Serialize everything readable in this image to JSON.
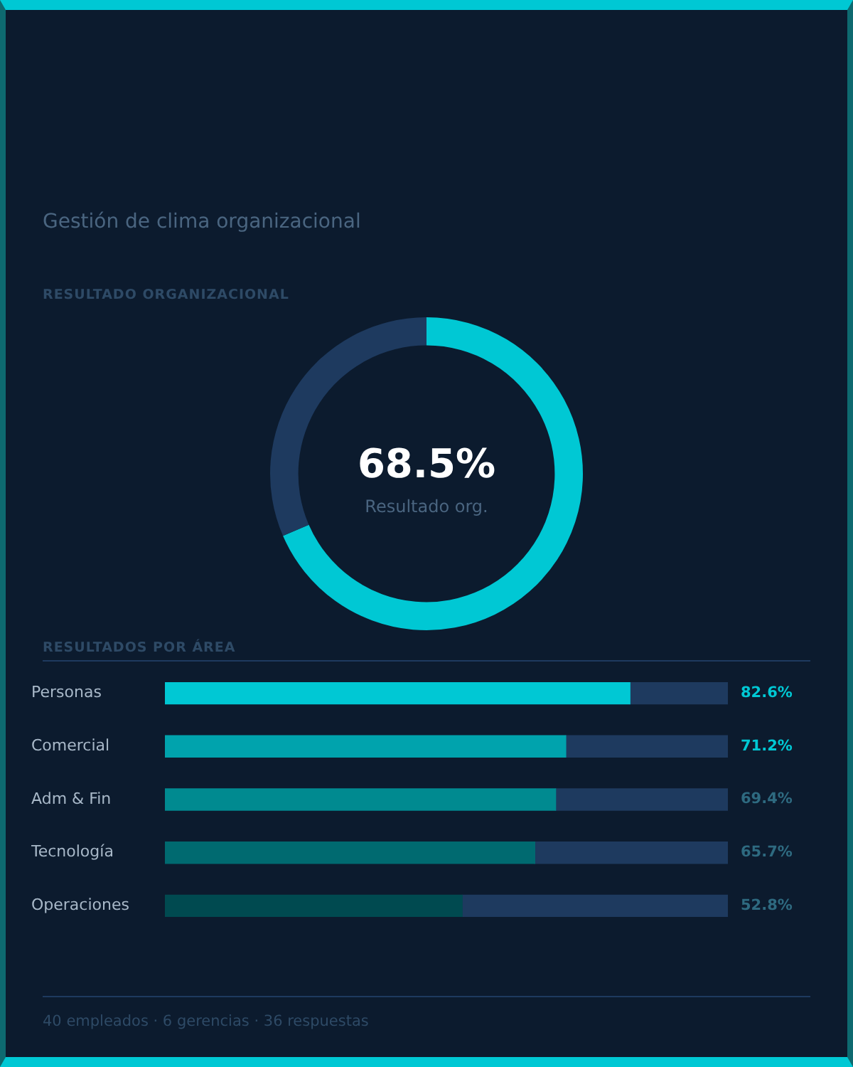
{
  "chart_data": [
    {
      "type": "donut",
      "title": "RESULTADO ORGANIZACIONAL",
      "subtitle": "Gestión de clima organizacional",
      "categories": [
        null,
        null
      ],
      "values": [
        68.5,
        31.5
      ],
      "colors": [
        "#00c8d4",
        "#1e3a5f"
      ],
      "value_labels": [
        "68.5%",
        null
      ],
      "annotations": [
        "Resultado org."
      ],
      "legend": false
    },
    {
      "type": "bar",
      "orientation": "horizontal",
      "stacked": true,
      "title": "RESULTADOS POR ÁREA",
      "categories": [
        "Personas",
        "Comercial",
        "Adm & Fin",
        "Tecnología",
        "Operaciones"
      ],
      "series": [
        {
          "colors": [
            "#00c8d4",
            "#00a3ad",
            "#008a90",
            "#006a70",
            "#004a50"
          ],
          "values": [
            82.6,
            71.2,
            69.4,
            65.7,
            52.8
          ],
          "value_labels": [
            "82.6%",
            "71.2%",
            "69.4%",
            "65.7%",
            "52.8%"
          ]
        },
        {
          "color": "#1e3a5f",
          "values": [
            17.4,
            28.8,
            30.6,
            34.3,
            47.2
          ]
        }
      ],
      "xlim": [
        0,
        100
      ],
      "tick_labels": "y",
      "legend": false,
      "annotations": [
        "40 empleados  ·  6 gerencias  ·  36 respuestas"
      ]
    }
  ]
}
